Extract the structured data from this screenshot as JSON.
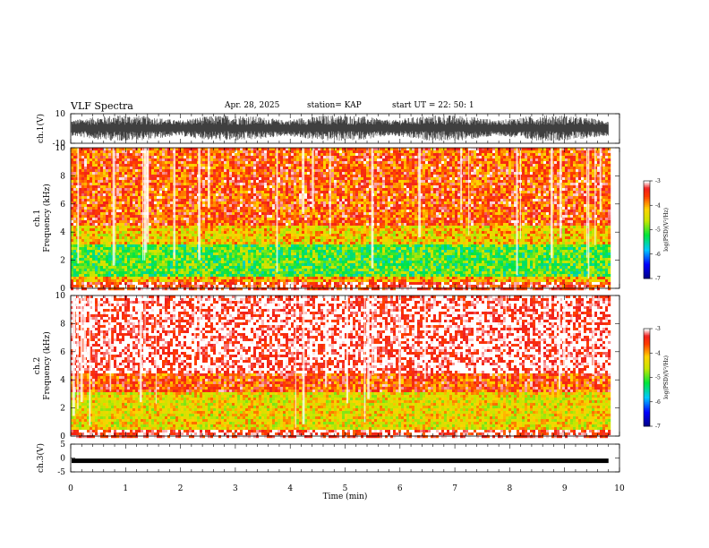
{
  "header": {
    "title": "VLF Spectra",
    "date": "Apr. 28, 2025",
    "station": "station= KAP",
    "start": "start  UT =   22: 50: 1"
  },
  "chart_data": [
    {
      "type": "line",
      "id": "ch1-waveform",
      "ylabel": "ch.1(V)",
      "ylim": [
        -10,
        10
      ],
      "ytick_labels": [
        "10",
        "-10"
      ],
      "xlim": [
        0,
        10
      ],
      "note_data": "dense waveform spanning roughly -9 to 9 V over 0-9.8 min"
    },
    {
      "type": "heatmap",
      "id": "ch1-spectrogram",
      "ylabel": "ch.1\nFrequency (kHz)",
      "ylim": [
        0,
        10
      ],
      "ytick_labels": [
        "0",
        "2",
        "4",
        "6",
        "8",
        "10"
      ],
      "xlim": [
        0,
        10
      ],
      "colorbar": {
        "label": "log(PSD)(V²/Hz)",
        "range": [
          -7,
          -3
        ],
        "tick_labels": [
          "-3",
          "-4",
          "-5",
          "-6",
          "-7"
        ]
      },
      "bands": [
        {
          "from_khz": 0,
          "to_khz": 0.6,
          "level": -3.3
        },
        {
          "from_khz": 0.6,
          "to_khz": 1.0,
          "level": -4.0
        },
        {
          "from_khz": 1.0,
          "to_khz": 3.2,
          "level": -5.0
        },
        {
          "from_khz": 3.2,
          "to_khz": 4.5,
          "level": -4.2
        },
        {
          "from_khz": 4.5,
          "to_khz": 10,
          "level": -3.6
        }
      ]
    },
    {
      "type": "heatmap",
      "id": "ch2-spectrogram",
      "ylabel": "ch.2\nFrequency (kHz)",
      "ylim": [
        0,
        10
      ],
      "ytick_labels": [
        "0",
        "2",
        "4",
        "6",
        "8",
        "10"
      ],
      "xlim": [
        0,
        10
      ],
      "colorbar": {
        "label": "log(PSD)(V²/Hz)",
        "range": [
          -7,
          -3
        ],
        "tick_labels": [
          "-3",
          "-4",
          "-5",
          "-6",
          "-7"
        ]
      },
      "bands": [
        {
          "from_khz": 0,
          "to_khz": 0.6,
          "level": -3.2
        },
        {
          "from_khz": 0.6,
          "to_khz": 3.2,
          "level": -4.3
        },
        {
          "from_khz": 3.2,
          "to_khz": 4.5,
          "level": -3.6
        },
        {
          "from_khz": 4.5,
          "to_khz": 10,
          "level": -3.1
        }
      ]
    },
    {
      "type": "line",
      "id": "ch3-waveform",
      "ylabel": "ch.3(V)",
      "ylim": [
        -5,
        5
      ],
      "ytick_labels": [
        "5",
        "0",
        "-5"
      ],
      "xlim": [
        0,
        10
      ],
      "note_data": "nearly flat band around -1 V over 0-9.8 min"
    }
  ],
  "xaxis": {
    "label": "Time (min)",
    "range": [
      0,
      10
    ],
    "tick_labels": [
      "0",
      "1",
      "2",
      "3",
      "4",
      "5",
      "6",
      "7",
      "8",
      "9",
      "10"
    ],
    "data_end": 9.8
  }
}
